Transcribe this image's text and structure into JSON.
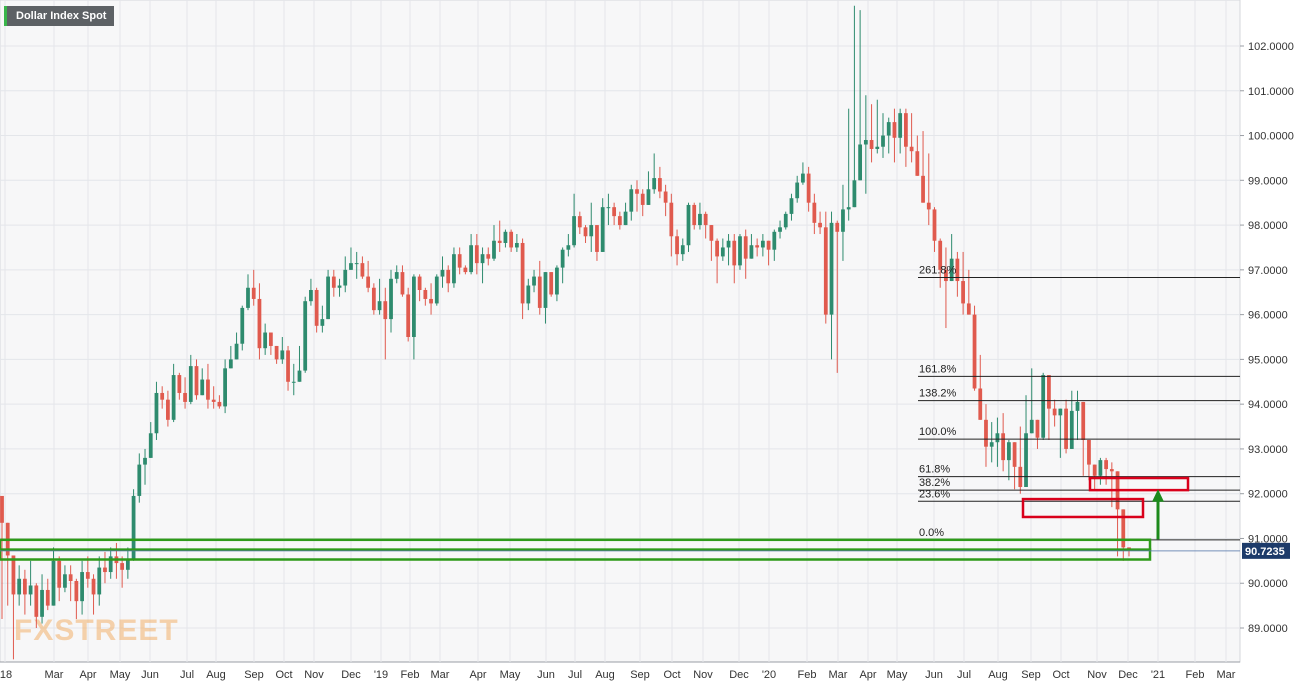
{
  "chart_data": {
    "type": "candlestick",
    "title": "Dollar Index Spot",
    "watermark": "FXSTREET",
    "last_price": "90.7235",
    "colors": {
      "up": "#2e8b6e",
      "down": "#e05a4e",
      "grid": "#e4e6ea",
      "plot_bg": "#f7f7f8",
      "box_red": "#d9001b",
      "box_green": "#2e9a1a",
      "arrow": "#1c8a1c",
      "price_label_bg": "#1d3b6a"
    },
    "y_axis": {
      "min": 88.3,
      "max": 103.0,
      "position": "right",
      "ticks": [
        "89.0000",
        "90.0000",
        "91.0000",
        "92.0000",
        "93.0000",
        "94.0000",
        "95.0000",
        "96.0000",
        "97.0000",
        "98.0000",
        "99.0000",
        "100.0000",
        "101.0000",
        "102.0000"
      ]
    },
    "x_axis": {
      "labels": [
        "'18",
        "Mar",
        "Apr",
        "May",
        "Jun",
        "Jul",
        "Aug",
        "Sep",
        "Oct",
        "Nov",
        "Dec",
        "'19",
        "Feb",
        "Mar",
        "Apr",
        "May",
        "Jun",
        "Jul",
        "Aug",
        "Sep",
        "Oct",
        "Nov",
        "Dec",
        "'20",
        "Feb",
        "Mar",
        "Apr",
        "May",
        "Jun",
        "Jul",
        "Aug",
        "Sep",
        "Oct",
        "Nov",
        "Dec",
        "'21",
        "Feb",
        "Mar"
      ]
    },
    "fib_levels": [
      {
        "label": "261.8%",
        "value": 96.83
      },
      {
        "label": "161.8%",
        "value": 94.62
      },
      {
        "label": "138.2%",
        "value": 94.08
      },
      {
        "label": "100.0%",
        "value": 93.22
      },
      {
        "label": "61.8%",
        "value": 92.38
      },
      {
        "label": "38.2%",
        "value": 92.08
      },
      {
        "label": "23.6%",
        "value": 91.83
      },
      {
        "label": "0.0%",
        "value": 90.97
      }
    ],
    "zones": [
      {
        "kind": "red",
        "top": 92.35,
        "bottom": 92.08
      },
      {
        "kind": "red",
        "top": 91.88,
        "bottom": 91.48
      },
      {
        "kind": "green",
        "top": 90.97,
        "bottom": 90.75
      },
      {
        "kind": "green",
        "top": 90.75,
        "bottom": 90.53
      }
    ],
    "closes": [
      91.35,
      90.62,
      89.75,
      90.1,
      89.75,
      89.95,
      89.25,
      89.85,
      89.5,
      90.5,
      89.9,
      90.2,
      90.05,
      89.6,
      90.25,
      90.1,
      89.75,
      90.35,
      90.25,
      90.6,
      90.45,
      90.3,
      90.55,
      91.95,
      92.65,
      92.8,
      93.35,
      94.25,
      94.1,
      93.65,
      94.65,
      94.25,
      94.05,
      94.85,
      94.2,
      94.55,
      94.1,
      94.05,
      93.95,
      94.8,
      95.0,
      95.35,
      96.15,
      96.6,
      96.35,
      95.25,
      95.6,
      95.3,
      95.0,
      95.2,
      94.5,
      94.5,
      94.75,
      96.3,
      96.55,
      95.75,
      95.9,
      96.85,
      96.6,
      96.65,
      97.0,
      97.15,
      97.15,
      96.85,
      96.6,
      96.1,
      96.3,
      95.9,
      96.8,
      96.95,
      96.45,
      95.5,
      96.85,
      96.55,
      96.35,
      96.25,
      96.85,
      97.0,
      96.7,
      97.35,
      97.05,
      96.95,
      97.55,
      97.15,
      97.35,
      97.25,
      97.65,
      97.6,
      97.85,
      97.5,
      97.6,
      96.25,
      96.65,
      96.85,
      96.15,
      96.95,
      96.45,
      97.05,
      97.45,
      97.55,
      98.2,
      97.95,
      97.75,
      98.0,
      97.4,
      98.4,
      98.4,
      98.2,
      98.0,
      98.3,
      98.8,
      98.7,
      98.45,
      98.8,
      99.05,
      98.75,
      98.5,
      97.75,
      97.35,
      97.55,
      98.45,
      98.0,
      98.25,
      98.0,
      97.65,
      97.3,
      97.5,
      97.65,
      97.1,
      97.75,
      97.25,
      97.55,
      97.5,
      97.65,
      97.45,
      97.85,
      97.95,
      98.25,
      98.6,
      98.95,
      99.15,
      98.5,
      98.05,
      97.95,
      96.0,
      98.05,
      97.85,
      98.35,
      98.4,
      99.0,
      99.8,
      99.9,
      99.7,
      99.75,
      100.0,
      100.3,
      99.95,
      100.5,
      99.75,
      99.65,
      99.1,
      98.5,
      98.35,
      97.65,
      97.0,
      96.75,
      97.25,
      96.75,
      96.25,
      96.0,
      94.35,
      93.65,
      93.05,
      93.15,
      93.35,
      92.75,
      93.15,
      92.6,
      92.15,
      93.35,
      93.65,
      93.25,
      94.65,
      93.9,
      93.75,
      93.9,
      93.0,
      93.85,
      94.05,
      93.2,
      92.65,
      92.4,
      92.75,
      92.55,
      92.5,
      91.65,
      90.8,
      90.7235
    ],
    "ranges": [
      [
        91.9,
        89.2
      ],
      [
        91.0,
        89.5
      ],
      [
        90.2,
        88.3
      ],
      [
        90.4,
        89.5
      ],
      [
        90.3,
        89.3
      ],
      [
        90.5,
        89.5
      ],
      [
        90.0,
        89.0
      ],
      [
        90.2,
        89.1
      ],
      [
        90.1,
        89.4
      ],
      [
        90.8,
        89.6
      ],
      [
        90.6,
        89.6
      ],
      [
        90.4,
        89.8
      ],
      [
        90.4,
        89.6
      ],
      [
        90.1,
        89.2
      ],
      [
        90.5,
        89.3
      ],
      [
        90.6,
        89.9
      ],
      [
        90.2,
        89.3
      ],
      [
        90.6,
        89.5
      ],
      [
        90.7,
        90.0
      ],
      [
        90.8,
        90.1
      ],
      [
        90.9,
        90.1
      ],
      [
        90.6,
        89.9
      ],
      [
        90.8,
        90.1
      ],
      [
        92.1,
        90.5
      ],
      [
        92.9,
        91.8
      ],
      [
        93.0,
        92.2
      ],
      [
        93.6,
        92.8
      ],
      [
        94.5,
        93.2
      ],
      [
        94.4,
        93.9
      ],
      [
        94.3,
        93.5
      ],
      [
        94.9,
        93.6
      ],
      [
        94.7,
        94.1
      ],
      [
        94.6,
        93.9
      ],
      [
        95.1,
        94.0
      ],
      [
        95.0,
        94.1
      ],
      [
        94.8,
        94.2
      ],
      [
        94.9,
        93.9
      ],
      [
        94.4,
        93.9
      ],
      [
        94.2,
        93.9
      ],
      [
        95.0,
        93.8
      ],
      [
        95.3,
        94.8
      ],
      [
        95.6,
        95.0
      ],
      [
        96.2,
        95.2
      ],
      [
        96.9,
        96.1
      ],
      [
        97.0,
        96.2
      ],
      [
        96.7,
        95.0
      ],
      [
        95.8,
        95.1
      ],
      [
        95.6,
        95.1
      ],
      [
        95.3,
        94.9
      ],
      [
        95.5,
        94.9
      ],
      [
        95.3,
        94.3
      ],
      [
        94.9,
        94.2
      ],
      [
        95.3,
        94.5
      ],
      [
        96.4,
        94.7
      ],
      [
        96.8,
        96.2
      ],
      [
        96.6,
        95.6
      ],
      [
        96.2,
        95.6
      ],
      [
        97.0,
        95.9
      ],
      [
        97.0,
        96.4
      ],
      [
        96.8,
        96.4
      ],
      [
        97.3,
        96.5
      ],
      [
        97.5,
        97.0
      ],
      [
        97.4,
        96.8
      ],
      [
        97.3,
        96.8
      ],
      [
        97.2,
        96.5
      ],
      [
        96.7,
        96.0
      ],
      [
        96.8,
        96.0
      ],
      [
        96.6,
        95.0
      ],
      [
        97.0,
        95.6
      ],
      [
        97.1,
        96.7
      ],
      [
        97.1,
        96.4
      ],
      [
        96.6,
        95.4
      ],
      [
        96.9,
        95.0
      ],
      [
        96.9,
        96.3
      ],
      [
        96.6,
        96.2
      ],
      [
        96.7,
        96.0
      ],
      [
        96.9,
        96.2
      ],
      [
        97.3,
        96.6
      ],
      [
        97.1,
        96.5
      ],
      [
        97.5,
        96.6
      ],
      [
        97.5,
        96.9
      ],
      [
        97.1,
        96.9
      ],
      [
        97.8,
        96.9
      ],
      [
        97.8,
        96.9
      ],
      [
        97.5,
        96.7
      ],
      [
        97.5,
        97.1
      ],
      [
        98.0,
        97.2
      ],
      [
        98.1,
        97.4
      ],
      [
        97.9,
        97.5
      ],
      [
        97.9,
        97.4
      ],
      [
        97.8,
        97.4
      ],
      [
        97.7,
        95.9
      ],
      [
        96.8,
        96.1
      ],
      [
        97.0,
        96.5
      ],
      [
        97.2,
        96.0
      ],
      [
        96.9,
        95.8
      ],
      [
        96.9,
        96.4
      ],
      [
        97.1,
        96.3
      ],
      [
        97.5,
        96.7
      ],
      [
        97.8,
        97.3
      ],
      [
        98.7,
        97.5
      ],
      [
        98.3,
        97.8
      ],
      [
        98.0,
        97.6
      ],
      [
        98.5,
        97.4
      ],
      [
        98.0,
        97.2
      ],
      [
        98.6,
        97.4
      ],
      [
        98.7,
        98.0
      ],
      [
        98.5,
        98.0
      ],
      [
        98.3,
        97.9
      ],
      [
        98.5,
        98.0
      ],
      [
        98.9,
        98.1
      ],
      [
        99.0,
        98.3
      ],
      [
        98.8,
        98.2
      ],
      [
        99.2,
        98.5
      ],
      [
        99.6,
        98.7
      ],
      [
        99.3,
        98.6
      ],
      [
        98.9,
        98.2
      ],
      [
        98.7,
        97.3
      ],
      [
        97.9,
        97.1
      ],
      [
        97.7,
        97.2
      ],
      [
        98.5,
        97.4
      ],
      [
        98.5,
        97.9
      ],
      [
        98.5,
        97.9
      ],
      [
        98.3,
        97.7
      ],
      [
        98.0,
        97.2
      ],
      [
        97.7,
        96.7
      ],
      [
        97.7,
        97.2
      ],
      [
        97.8,
        97.1
      ],
      [
        97.8,
        96.7
      ],
      [
        97.8,
        97.0
      ],
      [
        97.9,
        96.8
      ],
      [
        97.8,
        97.3
      ],
      [
        97.7,
        97.3
      ],
      [
        97.8,
        97.3
      ],
      [
        97.6,
        97.1
      ],
      [
        97.9,
        97.2
      ],
      [
        98.1,
        97.7
      ],
      [
        98.3,
        97.9
      ],
      [
        98.7,
        98.1
      ],
      [
        99.1,
        98.5
      ],
      [
        99.4,
        98.9
      ],
      [
        99.3,
        98.3
      ],
      [
        98.7,
        97.8
      ],
      [
        98.3,
        97.8
      ],
      [
        98.3,
        95.8
      ],
      [
        98.3,
        95.0
      ],
      [
        98.1,
        94.7
      ],
      [
        98.9,
        97.2
      ],
      [
        100.6,
        98.1
      ],
      [
        102.9,
        98.7
      ],
      [
        102.8,
        99.2
      ],
      [
        100.9,
        98.7
      ],
      [
        100.7,
        99.4
      ],
      [
        100.8,
        99.6
      ],
      [
        100.5,
        99.5
      ],
      [
        100.4,
        99.6
      ],
      [
        100.6,
        99.4
      ],
      [
        100.6,
        99.6
      ],
      [
        100.6,
        99.3
      ],
      [
        100.5,
        99.4
      ],
      [
        100.0,
        99.1
      ],
      [
        100.1,
        98.8
      ],
      [
        99.6,
        98.0
      ],
      [
        98.4,
        97.4
      ],
      [
        97.7,
        96.6
      ],
      [
        97.5,
        95.7
      ],
      [
        97.8,
        96.9
      ],
      [
        97.4,
        96.4
      ],
      [
        97.4,
        96.0
      ],
      [
        97.0,
        96.0
      ],
      [
        96.2,
        94.3
      ],
      [
        95.1,
        93.7
      ],
      [
        94.0,
        92.6
      ],
      [
        93.6,
        92.7
      ],
      [
        93.7,
        92.6
      ],
      [
        93.8,
        92.5
      ],
      [
        93.2,
        92.3
      ],
      [
        93.0,
        92.1
      ],
      [
        93.5,
        92.0
      ],
      [
        94.2,
        92.7
      ],
      [
        94.8,
        93.5
      ],
      [
        93.6,
        93.0
      ],
      [
        94.7,
        93.2
      ],
      [
        94.1,
        93.2
      ],
      [
        94.1,
        93.5
      ],
      [
        93.9,
        92.8
      ],
      [
        94.1,
        92.9
      ],
      [
        94.3,
        93.0
      ],
      [
        94.3,
        93.2
      ],
      [
        93.3,
        92.4
      ],
      [
        93.0,
        92.3
      ],
      [
        92.6,
        92.1
      ],
      [
        92.8,
        92.2
      ],
      [
        92.8,
        92.2
      ],
      [
        92.7,
        91.7
      ],
      [
        91.8,
        90.6
      ],
      [
        90.8,
        90.5
      ],
      [
        90.75,
        90.6
      ]
    ]
  }
}
